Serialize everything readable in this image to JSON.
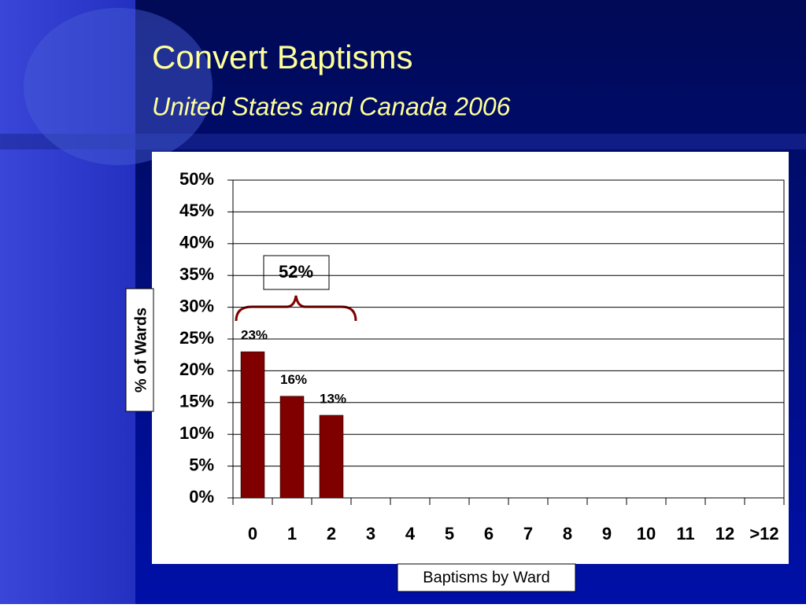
{
  "chart_data": {
    "type": "bar",
    "title": "Convert Baptisms",
    "subtitle": "United States and Canada 2006",
    "y_label": "% of Wards",
    "x_label": "Baptisms by Ward",
    "annotation": "52%",
    "categories": [
      "0",
      "1",
      "2",
      "3",
      "4",
      "5",
      "6",
      "7",
      "8",
      "9",
      "10",
      "11",
      "12",
      ">12"
    ],
    "values": [
      23,
      16,
      13,
      null,
      null,
      null,
      null,
      null,
      null,
      null,
      null,
      null,
      null,
      null
    ],
    "value_labels": [
      "23%",
      "16%",
      "13%",
      null,
      null,
      null,
      null,
      null,
      null,
      null,
      null,
      null,
      null,
      null
    ],
    "color": "#800000",
    "ylim": [
      0,
      50
    ],
    "yticks": [
      {
        "value": 0,
        "label": "0%"
      },
      {
        "value": 5,
        "label": "5%"
      },
      {
        "value": 10,
        "label": "10%"
      },
      {
        "value": 15,
        "label": "15%"
      },
      {
        "value": 20,
        "label": "20%"
      },
      {
        "value": 25,
        "label": "25%"
      },
      {
        "value": 30,
        "label": "30%"
      },
      {
        "value": 35,
        "label": "35%"
      },
      {
        "value": 40,
        "label": "40%"
      },
      {
        "value": 45,
        "label": "45%"
      },
      {
        "value": 50,
        "label": "50%"
      }
    ],
    "grid": true
  }
}
